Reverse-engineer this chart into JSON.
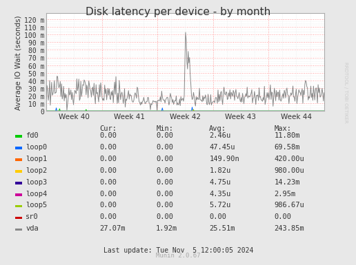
{
  "title": "Disk latency per device - by month",
  "ylabel": "Average IO Wait (seconds)",
  "watermark": "RRDTOOL / TOBI OETIKER",
  "munin_version": "Munin 2.0.67",
  "last_update": "Last update: Tue Nov  5 12:00:05 2024",
  "x_tick_labels": [
    "Week 40",
    "Week 41",
    "Week 42",
    "Week 43",
    "Week 44"
  ],
  "y_tick_labels": [
    "0",
    "10 m",
    "20 m",
    "30 m",
    "40 m",
    "50 m",
    "60 m",
    "70 m",
    "80 m",
    "90 m",
    "100 m",
    "110 m",
    "120 m"
  ],
  "y_tick_values": [
    0,
    0.01,
    0.02,
    0.03,
    0.04,
    0.05,
    0.06,
    0.07,
    0.08,
    0.09,
    0.1,
    0.11,
    0.12
  ],
  "ylim": [
    0,
    0.128
  ],
  "bg_color": "#e8e8e8",
  "plot_bg_color": "#ffffff",
  "grid_color_major": "#ff9999",
  "legend_items": [
    {
      "label": "fd0",
      "color": "#00cc00"
    },
    {
      "label": "loop0",
      "color": "#0066ff"
    },
    {
      "label": "loop1",
      "color": "#ff6600"
    },
    {
      "label": "loop2",
      "color": "#ffcc00"
    },
    {
      "label": "loop3",
      "color": "#330099"
    },
    {
      "label": "loop4",
      "color": "#cc0099"
    },
    {
      "label": "loop5",
      "color": "#99cc00"
    },
    {
      "label": "sr0",
      "color": "#cc0000"
    },
    {
      "label": "vda",
      "color": "#888888"
    }
  ],
  "table_headers": [
    "",
    "Cur:",
    "Min:",
    "Avg:",
    "Max:"
  ],
  "table_data": [
    [
      "fd0",
      "0.00",
      "0.00",
      "2.46u",
      "11.80m"
    ],
    [
      "loop0",
      "0.00",
      "0.00",
      "47.45u",
      "69.58m"
    ],
    [
      "loop1",
      "0.00",
      "0.00",
      "149.90n",
      "420.00u"
    ],
    [
      "loop2",
      "0.00",
      "0.00",
      "1.82u",
      "980.00u"
    ],
    [
      "loop3",
      "0.00",
      "0.00",
      "4.75u",
      "14.23m"
    ],
    [
      "loop4",
      "0.00",
      "0.00",
      "4.35u",
      "2.95m"
    ],
    [
      "loop5",
      "0.00",
      "0.00",
      "5.72u",
      "986.67u"
    ],
    [
      "sr0",
      "0.00",
      "0.00",
      "0.00",
      "0.00"
    ],
    [
      "vda",
      "27.07m",
      "1.92m",
      "25.51m",
      "243.85m"
    ]
  ],
  "title_color": "#333333"
}
